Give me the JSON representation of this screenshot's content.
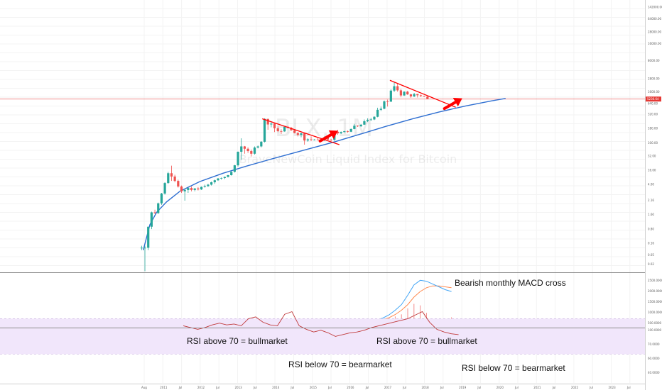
{
  "colors": {
    "up": "#26a69a",
    "down": "#ef5350",
    "trend_line": "#ff0000",
    "fit_curve": "#2f6fd1",
    "price_line": "#f08080",
    "macd_line": "#42a5f5",
    "signal_line": "#ff8a50",
    "hist": "#f28b8b",
    "rsi_band": "#f1e6fb",
    "rsi_line": "#c0393a",
    "separator": "#9e9e9e"
  },
  "chart_data": {
    "type": "candlestick",
    "symbol": "BLX, 1M",
    "description": "BraveNewCoin Liquid Index for Bitcoin",
    "scale": "log",
    "price_ticks": [
      "142000.00",
      "64000.00",
      "28000.00",
      "16000.00",
      "8000.00",
      "2800.00",
      "1600.00",
      "640.00",
      "320.00",
      "180.00",
      "100.00",
      "32.00",
      "16.00",
      "4.00",
      "2.16",
      "1.60",
      "0.80",
      "0.16",
      "0.05",
      "0.02"
    ],
    "price_ticks_pos": [
      0.0,
      0.045,
      0.095,
      0.14,
      0.205,
      0.275,
      0.325,
      0.37,
      0.41,
      0.465,
      0.52,
      0.57,
      0.625,
      0.68,
      0.74,
      0.795,
      0.85,
      0.905,
      0.95,
      0.985
    ],
    "current_price_label": "5236.64",
    "current_price": 5236.64,
    "time_labels": [
      "Aug",
      "2011",
      "Jul",
      "2012",
      "Jul",
      "2013",
      "Jul",
      "2014",
      "Jul",
      "2015",
      "Jul",
      "2016",
      "Jul",
      "2017",
      "Jul",
      "2018",
      "Jul",
      "2019",
      "Jul",
      "2020",
      "Jul",
      "2021",
      "Jul",
      "2022",
      "Jul",
      "2023",
      "Jul"
    ],
    "candles": [
      {
        "o": 0.06,
        "h": 0.07,
        "l": 0.05,
        "c": 0.06
      },
      {
        "o": 0.06,
        "h": 0.07,
        "l": 0.01,
        "c": 0.06
      },
      {
        "o": 0.06,
        "h": 0.3,
        "l": 0.05,
        "c": 0.3
      },
      {
        "o": 0.3,
        "h": 0.95,
        "l": 0.25,
        "c": 0.9
      },
      {
        "o": 0.9,
        "h": 1.1,
        "l": 0.8,
        "c": 0.85
      },
      {
        "o": 0.85,
        "h": 1.9,
        "l": 0.8,
        "c": 1.8
      },
      {
        "o": 1.8,
        "h": 4.0,
        "l": 1.6,
        "c": 3.8
      },
      {
        "o": 3.8,
        "h": 9.0,
        "l": 3.5,
        "c": 8.5
      },
      {
        "o": 8.5,
        "h": 20.0,
        "l": 8.0,
        "c": 18.0
      },
      {
        "o": 18.0,
        "h": 32.0,
        "l": 10.0,
        "c": 14.0
      },
      {
        "o": 14.0,
        "h": 16.0,
        "l": 9.0,
        "c": 10.0
      },
      {
        "o": 10.0,
        "h": 11.0,
        "l": 6.0,
        "c": 6.5
      },
      {
        "o": 6.5,
        "h": 7.0,
        "l": 4.0,
        "c": 4.5
      },
      {
        "o": 4.5,
        "h": 5.5,
        "l": 2.2,
        "c": 5.0
      },
      {
        "o": 5.0,
        "h": 6.0,
        "l": 4.0,
        "c": 5.8
      },
      {
        "o": 5.8,
        "h": 6.5,
        "l": 4.5,
        "c": 5.0
      },
      {
        "o": 5.0,
        "h": 5.8,
        "l": 4.5,
        "c": 5.6
      },
      {
        "o": 5.6,
        "h": 6.2,
        "l": 4.8,
        "c": 5.2
      },
      {
        "o": 5.2,
        "h": 6.5,
        "l": 5.0,
        "c": 6.3
      },
      {
        "o": 6.3,
        "h": 7.5,
        "l": 6.0,
        "c": 6.7
      },
      {
        "o": 6.7,
        "h": 8.0,
        "l": 6.3,
        "c": 7.5
      },
      {
        "o": 7.5,
        "h": 9.5,
        "l": 7.0,
        "c": 9.0
      },
      {
        "o": 9.0,
        "h": 11.0,
        "l": 8.0,
        "c": 10.5
      },
      {
        "o": 10.5,
        "h": 12.5,
        "l": 10.0,
        "c": 12.0
      },
      {
        "o": 12.0,
        "h": 13.0,
        "l": 11.0,
        "c": 12.5
      },
      {
        "o": 12.5,
        "h": 14.0,
        "l": 11.5,
        "c": 13.5
      },
      {
        "o": 13.5,
        "h": 16.0,
        "l": 13.0,
        "c": 15.5
      },
      {
        "o": 15.5,
        "h": 21.0,
        "l": 15.0,
        "c": 20.0
      },
      {
        "o": 20.0,
        "h": 34.0,
        "l": 19.0,
        "c": 33.0
      },
      {
        "o": 33.0,
        "h": 95.0,
        "l": 30.0,
        "c": 93.0
      },
      {
        "o": 93.0,
        "h": 260.0,
        "l": 50.0,
        "c": 140.0
      },
      {
        "o": 140.0,
        "h": 145.0,
        "l": 80.0,
        "c": 117.0
      },
      {
        "o": 117.0,
        "h": 130.0,
        "l": 85.0,
        "c": 98.0
      },
      {
        "o": 98.0,
        "h": 110.0,
        "l": 65.0,
        "c": 80.0
      },
      {
        "o": 80.0,
        "h": 140.0,
        "l": 75.0,
        "c": 128.0
      },
      {
        "o": 128.0,
        "h": 150.0,
        "l": 120.0,
        "c": 140.0
      },
      {
        "o": 140.0,
        "h": 210.0,
        "l": 130.0,
        "c": 200.0
      },
      {
        "o": 200.0,
        "h": 1200.0,
        "l": 190.0,
        "c": 1150.0
      },
      {
        "o": 1150.0,
        "h": 1150.0,
        "l": 500.0,
        "c": 750.0
      },
      {
        "o": 750.0,
        "h": 950.0,
        "l": 600.0,
        "c": 800.0
      },
      {
        "o": 800.0,
        "h": 820.0,
        "l": 420.0,
        "c": 560.0
      },
      {
        "o": 560.0,
        "h": 650.0,
        "l": 420.0,
        "c": 450.0
      },
      {
        "o": 450.0,
        "h": 520.0,
        "l": 360.0,
        "c": 440.0
      },
      {
        "o": 440.0,
        "h": 620.0,
        "l": 430.0,
        "c": 630.0
      },
      {
        "o": 630.0,
        "h": 680.0,
        "l": 560.0,
        "c": 580.0
      },
      {
        "o": 580.0,
        "h": 620.0,
        "l": 460.0,
        "c": 480.0
      },
      {
        "o": 480.0,
        "h": 500.0,
        "l": 380.0,
        "c": 390.0
      },
      {
        "o": 390.0,
        "h": 420.0,
        "l": 300.0,
        "c": 340.0
      },
      {
        "o": 340.0,
        "h": 400.0,
        "l": 280.0,
        "c": 380.0
      },
      {
        "o": 380.0,
        "h": 390.0,
        "l": 160.0,
        "c": 220.0
      },
      {
        "o": 220.0,
        "h": 260.0,
        "l": 200.0,
        "c": 240.0
      },
      {
        "o": 240.0,
        "h": 300.0,
        "l": 210.0,
        "c": 230.0
      },
      {
        "o": 230.0,
        "h": 245.0,
        "l": 220.0,
        "c": 236.0
      },
      {
        "o": 236.0,
        "h": 265.0,
        "l": 225.0,
        "c": 230.0
      },
      {
        "o": 230.0,
        "h": 245.0,
        "l": 215.0,
        "c": 225.0
      },
      {
        "o": 225.0,
        "h": 300.0,
        "l": 210.0,
        "c": 280.0
      },
      {
        "o": 280.0,
        "h": 320.0,
        "l": 260.0,
        "c": 235.0
      },
      {
        "o": 235.0,
        "h": 250.0,
        "l": 210.0,
        "c": 230.0
      },
      {
        "o": 230.0,
        "h": 460.0,
        "l": 215.0,
        "c": 430.0
      },
      {
        "o": 430.0,
        "h": 500.0,
        "l": 340.0,
        "c": 380.0
      },
      {
        "o": 380.0,
        "h": 440.0,
        "l": 360.0,
        "c": 420.0
      },
      {
        "o": 420.0,
        "h": 460.0,
        "l": 410.0,
        "c": 450.0
      },
      {
        "o": 450.0,
        "h": 470.0,
        "l": 400.0,
        "c": 430.0
      },
      {
        "o": 430.0,
        "h": 550.0,
        "l": 420.0,
        "c": 530.0
      },
      {
        "o": 530.0,
        "h": 780.0,
        "l": 520.0,
        "c": 680.0
      },
      {
        "o": 680.0,
        "h": 700.0,
        "l": 620.0,
        "c": 650.0
      },
      {
        "o": 650.0,
        "h": 760.0,
        "l": 630.0,
        "c": 740.0
      },
      {
        "o": 740.0,
        "h": 1100.0,
        "l": 730.0,
        "c": 960.0
      },
      {
        "o": 960.0,
        "h": 1200.0,
        "l": 900.0,
        "c": 1050.0
      },
      {
        "o": 1050.0,
        "h": 1250.0,
        "l": 1000.0,
        "c": 1100.0
      },
      {
        "o": 1100.0,
        "h": 1400.0,
        "l": 1050.0,
        "c": 1350.0
      },
      {
        "o": 1350.0,
        "h": 2700.0,
        "l": 1300.0,
        "c": 2300.0
      },
      {
        "o": 2300.0,
        "h": 2950.0,
        "l": 2100.0,
        "c": 2500.0
      },
      {
        "o": 2500.0,
        "h": 4700.0,
        "l": 2400.0,
        "c": 4400.0
      },
      {
        "o": 4400.0,
        "h": 5000.0,
        "l": 2950.0,
        "c": 4300.0
      },
      {
        "o": 4300.0,
        "h": 11000.0,
        "l": 4200.0,
        "c": 10000.0
      },
      {
        "o": 10000.0,
        "h": 19500.0,
        "l": 9000.0,
        "c": 14000.0
      },
      {
        "o": 14000.0,
        "h": 17000.0,
        "l": 9200.0,
        "c": 10200.0
      },
      {
        "o": 10200.0,
        "h": 11500.0,
        "l": 6000.0,
        "c": 6900.0
      },
      {
        "o": 6900.0,
        "h": 9500.0,
        "l": 6600.0,
        "c": 9200.0
      },
      {
        "o": 9200.0,
        "h": 9900.0,
        "l": 7200.0,
        "c": 7500.0
      },
      {
        "o": 7500.0,
        "h": 7800.0,
        "l": 5800.0,
        "c": 6400.0
      },
      {
        "o": 6400.0,
        "h": 8400.0,
        "l": 6100.0,
        "c": 7700.0
      },
      {
        "o": 7700.0,
        "h": 7800.0,
        "l": 5900.0,
        "c": 7000.0
      },
      {
        "o": 7000.0,
        "h": 7400.0,
        "l": 6100.0,
        "c": 6600.0
      },
      {
        "o": 6600.0,
        "h": 6800.0,
        "l": 6200.0,
        "c": 6300.0
      },
      {
        "o": 6300.0,
        "h": 6500.0,
        "l": 5200.0,
        "c": 5236.64
      }
    ],
    "oscillator_ticks": {
      "macd": [
        "2500.0000",
        "2000.0000",
        "1500.0000",
        "1000.0000",
        "500.0000"
      ],
      "rsi": [
        "100.0000",
        "70.0000",
        "60.0000",
        "40.0000"
      ]
    },
    "annotations": {
      "macd_note": "Bearish monthly MACD cross",
      "rsi_bull_1": "RSI above 70 = bullmarket",
      "rsi_bull_2": "RSI above 70 = bullmarket",
      "rsi_bear_1": "RSI below 70 = bearmarket",
      "rsi_bear_2": "RSI below 70 = bearmarket"
    },
    "trendlines": [
      {
        "from": {
          "t": 36.8,
          "p": 1160
        },
        "to": {
          "t": 60.0,
          "p": 160
        }
      },
      {
        "from": {
          "t": 75.2,
          "p": 22000
        },
        "to": {
          "t": 95.0,
          "p": 2800
        }
      }
    ],
    "fit_curve": [
      {
        "t": 1.0,
        "p": 0.05
      },
      {
        "t": 3.0,
        "p": 0.35
      },
      {
        "t": 5.0,
        "p": 0.9
      },
      {
        "t": 8.0,
        "p": 2.0
      },
      {
        "t": 12.0,
        "p": 4.5
      },
      {
        "t": 18.0,
        "p": 9.5
      },
      {
        "t": 25.0,
        "p": 18.0
      },
      {
        "t": 32.0,
        "p": 31.0
      },
      {
        "t": 40.0,
        "p": 55.0
      },
      {
        "t": 50.0,
        "p": 110.0
      },
      {
        "t": 58.0,
        "p": 190.0
      },
      {
        "t": 66.0,
        "p": 350.0
      },
      {
        "t": 74.0,
        "p": 650.0
      },
      {
        "t": 82.0,
        "p": 1150.0
      },
      {
        "t": 90.0,
        "p": 1950.0
      },
      {
        "t": 98.0,
        "p": 3100.0
      },
      {
        "t": 106.0,
        "p": 4600.0
      },
      {
        "t": 110.0,
        "p": 5500.0
      }
    ],
    "arrows": [
      {
        "t": 56.6,
        "p": 300
      },
      {
        "t": 94.0,
        "p": 3600
      }
    ],
    "macd": [
      0,
      0.5,
      1.0,
      1.0,
      1.5,
      2.0,
      3.0,
      4.0,
      5.0,
      5.5,
      6.0,
      6.5,
      7.5,
      8.0,
      10.0,
      12.0,
      15.0,
      18.0,
      22.0,
      27.0,
      35.0,
      45.0,
      60.0,
      80.0,
      120.0,
      180.0,
      280.0,
      450.0,
      700.0,
      1000.0,
      1500.0,
      2050.0,
      2300.0,
      2250.0,
      2100.0,
      1950.0,
      1800.0,
      1700.0
    ],
    "macd_signal": [
      0,
      0.5,
      1.0,
      1.0,
      1.5,
      2.0,
      2.5,
      3.5,
      4.5,
      5.5,
      6.0,
      6.5,
      7.5,
      8.0,
      9.0,
      11.0,
      13.0,
      16.0,
      19.0,
      23.0,
      28.0,
      36.0,
      46.0,
      60.0,
      85.0,
      125.0,
      190.0,
      300.0,
      470.0,
      700.0,
      1000.0,
      1400.0,
      1700.0,
      1900.0,
      2000.0,
      2000.0,
      1950.0,
      1900.0
    ],
    "rsi": [
      62,
      60,
      58,
      60,
      63,
      65,
      63,
      64,
      62,
      70,
      72,
      66,
      63,
      62,
      75,
      78,
      62,
      58,
      55,
      57,
      54,
      50,
      52,
      54,
      55,
      57,
      60,
      62,
      64,
      66,
      68,
      70,
      74,
      78,
      66,
      58,
      55,
      53,
      52
    ]
  }
}
